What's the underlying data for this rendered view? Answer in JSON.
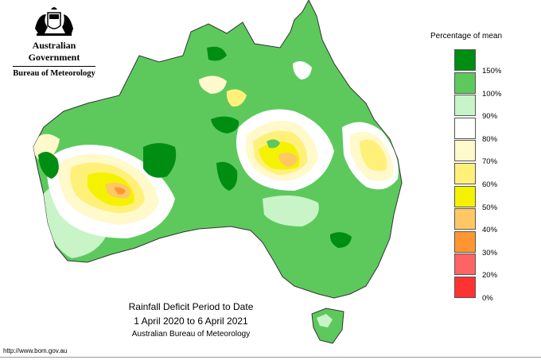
{
  "header": {
    "government": "Australian Government",
    "bureau": "Bureau of Meteorology"
  },
  "legend": {
    "title": "Percentage of mean",
    "bins": [
      {
        "label": "150%",
        "color": "#008e12"
      },
      {
        "label": "100%",
        "color": "#5dc95d"
      },
      {
        "label": "90%",
        "color": "#c8f4c8"
      },
      {
        "label": "80%",
        "color": "#ffffff"
      },
      {
        "label": "70%",
        "color": "#fff9cc"
      },
      {
        "label": "60%",
        "color": "#fff07a"
      },
      {
        "label": "50%",
        "color": "#f5f200"
      },
      {
        "label": "40%",
        "color": "#ffc864"
      },
      {
        "label": "30%",
        "color": "#ff9632"
      },
      {
        "label": "20%",
        "color": "#ff6464"
      },
      {
        "label": "0%",
        "color": "#ff3232"
      }
    ]
  },
  "caption": {
    "line1": "Rainfall Deficit Period to Date",
    "line2": "1 April 2020 to 6 April 2021",
    "line3": "Australian Bureau of Meteorology"
  },
  "footer": {
    "url": "http://www.bom.gov.au"
  }
}
